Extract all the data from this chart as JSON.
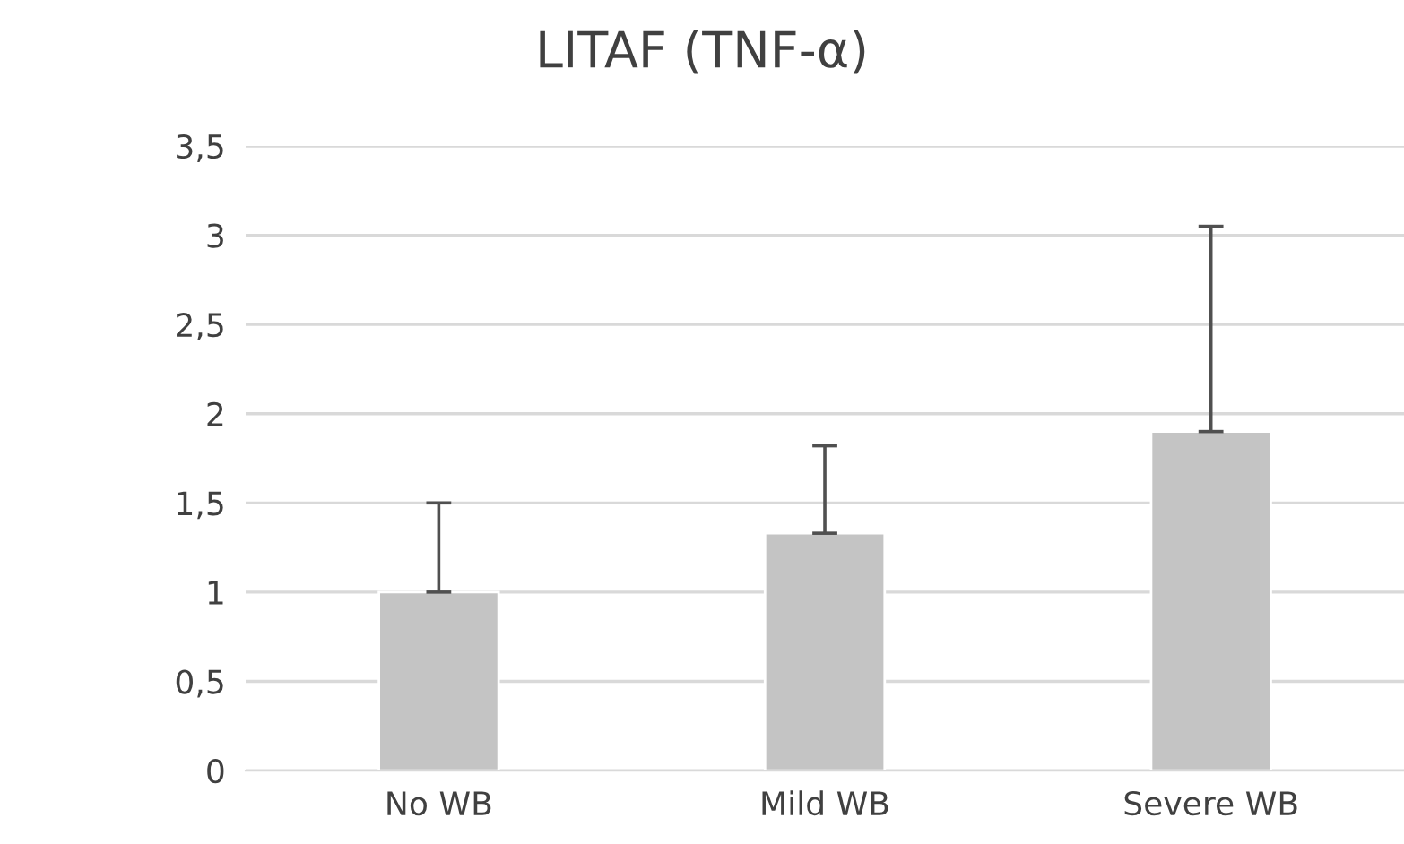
{
  "chart_data": {
    "type": "bar",
    "title": "LITAF (TNF-α)",
    "categories": [
      "No WB",
      "Mild WB",
      "Severe WB"
    ],
    "values": [
      1.0,
      1.33,
      1.9
    ],
    "errors": [
      [
        1.0,
        1.5
      ],
      [
        1.33,
        1.82
      ],
      [
        1.9,
        3.05
      ]
    ],
    "color": "#c4c4c4",
    "ylim": [
      0,
      3.5
    ],
    "yticks": [
      0,
      {
        "value": 0.5,
        "label": "0,5"
      },
      1,
      {
        "value": 1.5,
        "label": "1,5"
      },
      2,
      {
        "value": 2.5,
        "label": "2,5"
      },
      3,
      {
        "value": 3.5,
        "label": "3,5"
      }
    ],
    "grid": "y"
  }
}
